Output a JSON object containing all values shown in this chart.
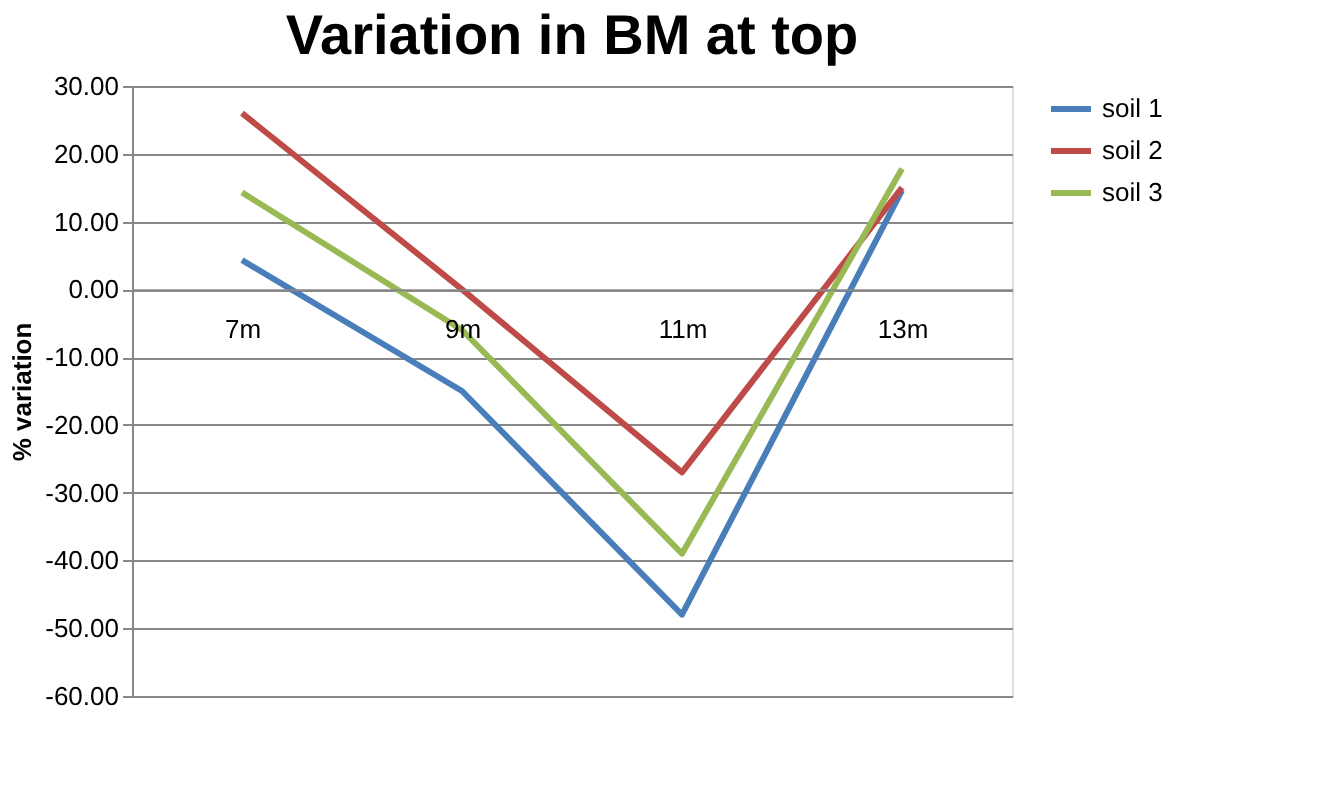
{
  "chart_data": {
    "type": "line",
    "title": "Variation in BM at top",
    "ylabel": "% variation",
    "categories": [
      "7m",
      "9m",
      "11m",
      "13m"
    ],
    "series": [
      {
        "name": "soil 1",
        "color": "#4a7ebb",
        "values": [
          4.3,
          -15,
          -48,
          14.6
        ]
      },
      {
        "name": "soil 2",
        "color": "#be4b48",
        "values": [
          26,
          0,
          -27,
          15
        ]
      },
      {
        "name": "soil 3",
        "color": "#98b954",
        "values": [
          14.3,
          -6,
          -39,
          17.8
        ]
      }
    ],
    "ylim": [
      -60,
      30
    ],
    "yticks": [
      {
        "value": -60,
        "label": "-60.00"
      },
      {
        "value": -50,
        "label": "-50.00"
      },
      {
        "value": -40,
        "label": "-40.00"
      },
      {
        "value": -30,
        "label": "-30.00"
      },
      {
        "value": -20,
        "label": "-20.00"
      },
      {
        "value": -10,
        "label": "-10.00"
      },
      {
        "value": 0,
        "label": "0.00"
      },
      {
        "value": 10,
        "label": "10.00"
      },
      {
        "value": 20,
        "label": "20.00"
      },
      {
        "value": 30,
        "label": "30.00"
      }
    ],
    "grid": "y",
    "legend": "right",
    "marker": "none",
    "line_style": "solid"
  }
}
